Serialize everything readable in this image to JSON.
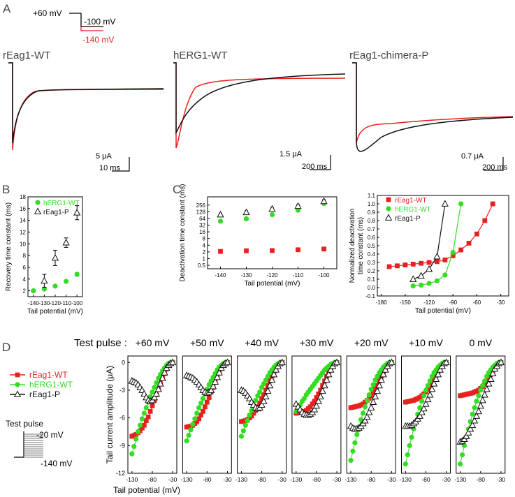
{
  "panel_letters": {
    "A": "A",
    "B": "B",
    "C": "C",
    "D": "D"
  },
  "protocol_A": {
    "hold": "+60 mV",
    "step1": "-100 mV",
    "step2": "-140 mV"
  },
  "traces": {
    "rEag1": {
      "title": "rEag1-WT",
      "scale_y": "5  μA",
      "scale_x": "10 ms"
    },
    "hERG1": {
      "title": "hERG1-WT",
      "scale_y": "1.5  μA",
      "scale_x": "200 ms"
    },
    "chimera": {
      "title": "rEag1-chimera-P",
      "scale_y": "0.7  μA",
      "scale_x": "200 ms"
    }
  },
  "colors": {
    "red": "#e8201f",
    "green": "#33dd22",
    "black": "#111111"
  },
  "panel_D": {
    "test_pulse_heading": "Test pulse :",
    "protocol_title": "Test pulse",
    "protocol_top": "-20 mV",
    "protocol_bottom": "-140 mV"
  },
  "chart_data": [
    {
      "id": "B",
      "type": "scatter",
      "xlabel": "Tail potential (mV)",
      "ylabel": "Recovery time constant (ms)",
      "xticks": [
        "-140",
        "-130",
        "-120",
        "-110",
        "-100"
      ],
      "yticks": [
        "2",
        "4",
        "6",
        "8",
        "10",
        "12",
        "14",
        "16",
        "18"
      ],
      "xlim": [
        -145,
        -95
      ],
      "ylim": [
        1,
        18
      ],
      "legend": [
        "hERG1-WT",
        "rEag1-P"
      ],
      "series": [
        {
          "name": "hERG1-WT",
          "x": [
            -140,
            -130,
            -120,
            -110,
            -100
          ],
          "y": [
            2.0,
            2.3,
            2.8,
            3.6,
            4.8
          ],
          "err": [
            0,
            0,
            0,
            0,
            0.3
          ]
        },
        {
          "name": "rEag1-P",
          "x": [
            -130,
            -120,
            -110,
            -100
          ],
          "y": [
            3.7,
            7.6,
            10.2,
            15.3
          ],
          "err": [
            1.1,
            1.3,
            0.8,
            1.2
          ]
        }
      ]
    },
    {
      "id": "C",
      "type": "scatter",
      "scale": "log2",
      "xlabel": "Tail potential (mV)",
      "ylabel": "Deactivation time constant (ms)",
      "xticks": [
        "-140",
        "-130",
        "-120",
        "-110",
        "-100"
      ],
      "yticks": [
        "0.5",
        "1",
        "2",
        "4",
        "8",
        "16",
        "32",
        "64",
        "128",
        "256"
      ],
      "xlim": [
        -145,
        -95
      ],
      "ylim": [
        0.35,
        600
      ],
      "series": [
        {
          "name": "rEag1-WT",
          "x": [
            -140,
            -130,
            -120,
            -110,
            -100
          ],
          "y": [
            2.1,
            2.25,
            2.3,
            2.5,
            2.7
          ]
        },
        {
          "name": "hERG1-WT",
          "x": [
            -140,
            -130,
            -120,
            -110,
            -100
          ],
          "y": [
            48,
            62,
            95,
            150,
            300
          ]
        },
        {
          "name": "rEag1-P",
          "x": [
            -140,
            -130,
            -120,
            -110,
            -100
          ],
          "y": [
            95,
            120,
            170,
            230,
            380
          ]
        }
      ]
    },
    {
      "id": "C-right",
      "type": "line",
      "xlabel": "Tail potential (mV)",
      "ylabel": "Normalized deactivation time constant (ms)",
      "ylabel_lines": [
        "Normalized deactivation",
        "time constant (ms)"
      ],
      "xticks": [
        "-180",
        "-150",
        "-120",
        "-90",
        "-60",
        "-30"
      ],
      "yticks": [
        "-0.1",
        "0.0",
        "0.1",
        "0.2",
        "0.3",
        "0.4",
        "0.5",
        "0.6",
        "0.7",
        "0.8",
        "0.9",
        "1.0",
        "1.1"
      ],
      "xlim": [
        -185,
        -20
      ],
      "ylim": [
        -0.1,
        1.1
      ],
      "legend": [
        "rEag1-WT",
        "hERG1-WT",
        "rEag1-P"
      ],
      "series": [
        {
          "name": "rEag1-WT",
          "x": [
            -170,
            -160,
            -150,
            -140,
            -130,
            -120,
            -110,
            -100,
            -90,
            -80,
            -70,
            -60,
            -50,
            -40
          ],
          "y": [
            0.25,
            0.26,
            0.27,
            0.28,
            0.29,
            0.3,
            0.31,
            0.33,
            0.38,
            0.45,
            0.53,
            0.64,
            0.8,
            1.0
          ]
        },
        {
          "name": "hERG1-WT",
          "x": [
            -140,
            -130,
            -120,
            -110,
            -100,
            -90,
            -80
          ],
          "y": [
            0.02,
            0.03,
            0.05,
            0.08,
            0.15,
            0.42,
            1.0
          ]
        },
        {
          "name": "rEag1-P",
          "x": [
            -140,
            -130,
            -120,
            -110,
            -100
          ],
          "y": [
            0.1,
            0.14,
            0.22,
            0.37,
            1.0
          ]
        }
      ]
    },
    {
      "id": "D",
      "type": "line",
      "xlabel": "Tail potential (mV)",
      "ylabel": "Tail current amplitude (μA)",
      "xticks": [
        "-130",
        "-80",
        "-30"
      ],
      "yticks": [
        "0",
        "-3",
        "-6",
        "-9",
        "-12"
      ],
      "xlim": [
        -140,
        -20
      ],
      "ylim": [
        -12,
        0.7
      ],
      "legend": [
        "rEag1-WT",
        "hERG1-WT",
        "rEag1-P"
      ],
      "x": [
        -130,
        -125,
        -120,
        -115,
        -110,
        -105,
        -100,
        -95,
        -90,
        -85,
        -80,
        -75,
        -70,
        -65,
        -60,
        -55,
        -50,
        -45,
        -40,
        -35,
        -30
      ],
      "panels": [
        {
          "label": "+60 mV",
          "series": [
            {
              "name": "rEag1-WT",
              "y": [
                -8,
                -7.9,
                -7.8,
                -7.6,
                -7.4,
                -7.1,
                -6.8,
                -6.3,
                -5.9,
                -5.3,
                -4.7,
                -4.1,
                -3.5,
                -2.9,
                -2.3,
                -1.7,
                -1.2,
                -0.7,
                -0.3,
                -0.1,
                0
              ]
            },
            {
              "name": "hERG1-WT",
              "y": [
                -9.9,
                -9.1,
                -8.3,
                -7.5,
                -6.8,
                -6.1,
                -5.5,
                -4.9,
                -4.3,
                -3.7,
                -3.2,
                -2.7,
                -2.2,
                -1.7,
                -1.3,
                -0.9,
                -0.6,
                -0.3,
                -0.1,
                0,
                0
              ]
            },
            {
              "name": "rEag1-P",
              "y": [
                -2,
                -2.1,
                -2.2,
                -2.4,
                -2.7,
                -3.0,
                -3.4,
                -3.8,
                -4.1,
                -4.2,
                -4.1,
                -3.8,
                -3.4,
                -2.9,
                -2.3,
                -1.7,
                -1.1,
                -0.6,
                -0.3,
                -0.1,
                0
              ]
            }
          ]
        },
        {
          "label": "+50 mV",
          "series": [
            {
              "name": "rEag1-WT",
              "y": [
                -7.0,
                -6.95,
                -6.9,
                -6.8,
                -6.6,
                -6.4,
                -6.1,
                -5.7,
                -5.3,
                -4.8,
                -4.3,
                -3.8,
                -3.2,
                -2.7,
                -2.1,
                -1.6,
                -1.1,
                -0.6,
                -0.3,
                -0.1,
                0
              ]
            },
            {
              "name": "hERG1-WT",
              "y": [
                -8.5,
                -7.9,
                -7.3,
                -6.7,
                -6.1,
                -5.5,
                -4.9,
                -4.4,
                -3.9,
                -3.4,
                -2.9,
                -2.4,
                -2.0,
                -1.6,
                -1.2,
                -0.8,
                -0.5,
                -0.3,
                -0.1,
                0,
                0
              ]
            },
            {
              "name": "rEag1-P",
              "y": [
                -1.4,
                -1.5,
                -1.6,
                -1.7,
                -1.9,
                -2.1,
                -2.4,
                -2.7,
                -3.0,
                -3.2,
                -3.3,
                -3.2,
                -3.0,
                -2.6,
                -2.1,
                -1.6,
                -1.1,
                -0.6,
                -0.3,
                -0.1,
                0
              ]
            }
          ]
        },
        {
          "label": "+40 mV",
          "series": [
            {
              "name": "rEag1-WT",
              "y": [
                -6.4,
                -6.35,
                -6.3,
                -6.2,
                -6.0,
                -5.8,
                -5.5,
                -5.2,
                -4.8,
                -4.4,
                -3.9,
                -3.5,
                -3.0,
                -2.5,
                -2.0,
                -1.5,
                -1.0,
                -0.6,
                -0.3,
                -0.1,
                0
              ]
            },
            {
              "name": "hERG1-WT",
              "y": [
                -8.0,
                -7.4,
                -6.8,
                -6.3,
                -5.7,
                -5.2,
                -4.6,
                -4.1,
                -3.6,
                -3.2,
                -2.7,
                -2.3,
                -1.9,
                -1.5,
                -1.1,
                -0.8,
                -0.5,
                -0.3,
                -0.1,
                0,
                0
              ]
            },
            {
              "name": "rEag1-P",
              "y": [
                -3.0,
                -3.1,
                -3.3,
                -3.6,
                -3.9,
                -4.3,
                -4.6,
                -4.9,
                -5.0,
                -4.9,
                -4.6,
                -4.2,
                -3.7,
                -3.1,
                -2.5,
                -1.9,
                -1.3,
                -0.8,
                -0.4,
                -0.1,
                0
              ]
            }
          ]
        },
        {
          "label": "+30 mV",
          "series": [
            {
              "name": "rEag1-WT",
              "y": [
                -5.5,
                -5.45,
                -5.4,
                -5.35,
                -5.3,
                -5.2,
                -5.0,
                -4.8,
                -4.5,
                -4.2,
                -3.8,
                -3.4,
                -3.0,
                -2.5,
                -2.0,
                -1.5,
                -1.0,
                -0.6,
                -0.3,
                -0.1,
                0
              ]
            },
            {
              "name": "hERG1-WT",
              "y": [
                -5.3,
                -4.9,
                -4.6,
                -4.2,
                -3.9,
                -3.5,
                -3.2,
                -2.9,
                -2.6,
                -2.3,
                -2.0,
                -1.7,
                -1.4,
                -1.1,
                -0.8,
                -0.6,
                -0.4,
                -0.2,
                -0.1,
                0,
                0
              ]
            },
            {
              "name": "rEag1-P",
              "y": [
                -4.5,
                -4.8,
                -5.1,
                -5.4,
                -5.6,
                -5.7,
                -5.7,
                -5.6,
                -5.4,
                -5.1,
                -4.7,
                -4.2,
                -3.7,
                -3.1,
                -2.5,
                -1.9,
                -1.3,
                -0.8,
                -0.4,
                -0.1,
                0
              ]
            }
          ]
        },
        {
          "label": "+20 mV",
          "series": [
            {
              "name": "rEag1-WT",
              "y": [
                -4.9,
                -4.85,
                -4.8,
                -4.75,
                -4.7,
                -4.6,
                -4.5,
                -4.3,
                -4.1,
                -3.9,
                -3.6,
                -3.3,
                -2.9,
                -2.5,
                -2.0,
                -1.5,
                -1.0,
                -0.6,
                -0.3,
                -0.1,
                0
              ]
            },
            {
              "name": "hERG1-WT",
              "y": [
                -10.6,
                -9.6,
                -8.7,
                -7.8,
                -7.0,
                -6.2,
                -5.5,
                -4.8,
                -4.1,
                -3.5,
                -2.9,
                -2.4,
                -1.9,
                -1.5,
                -1.1,
                -0.8,
                -0.5,
                -0.3,
                -0.1,
                0,
                0
              ]
            },
            {
              "name": "rEag1-P",
              "y": [
                -6.9,
                -7.1,
                -7.2,
                -7.2,
                -7.1,
                -6.9,
                -6.6,
                -6.3,
                -5.9,
                -5.4,
                -4.9,
                -4.3,
                -3.7,
                -3.1,
                -2.5,
                -1.9,
                -1.3,
                -0.8,
                -0.4,
                -0.1,
                0
              ]
            }
          ]
        },
        {
          "label": "+10 mV",
          "series": [
            {
              "name": "rEag1-WT",
              "y": [
                -4.3,
                -4.25,
                -4.2,
                -4.15,
                -4.1,
                -4.0,
                -3.9,
                -3.8,
                -3.6,
                -3.4,
                -3.2,
                -2.9,
                -2.6,
                -2.2,
                -1.8,
                -1.4,
                -1.0,
                -0.6,
                -0.3,
                -0.1,
                0
              ]
            },
            {
              "name": "hERG1-WT",
              "y": [
                -11.0,
                -10.0,
                -9.0,
                -8.1,
                -7.2,
                -6.4,
                -5.6,
                -4.9,
                -4.2,
                -3.6,
                -3.0,
                -2.5,
                -2.0,
                -1.5,
                -1.1,
                -0.8,
                -0.5,
                -0.3,
                -0.1,
                0,
                0
              ]
            },
            {
              "name": "rEag1-P",
              "y": [
                -6.9,
                -6.9,
                -6.9,
                -6.8,
                -6.6,
                -6.4,
                -6.1,
                -5.8,
                -5.4,
                -5.0,
                -4.5,
                -4.0,
                -3.5,
                -2.9,
                -2.3,
                -1.8,
                -1.3,
                -0.8,
                -0.4,
                -0.1,
                0
              ]
            }
          ]
        },
        {
          "label": "0 mV",
          "series": [
            {
              "name": "rEag1-WT",
              "y": [
                -3.6,
                -3.55,
                -3.5,
                -3.45,
                -3.4,
                -3.35,
                -3.3,
                -3.2,
                -3.1,
                -3.0,
                -2.8,
                -2.6,
                -2.3,
                -2.0,
                -1.7,
                -1.3,
                -0.9,
                -0.6,
                -0.3,
                -0.1,
                0
              ]
            },
            {
              "name": "hERG1-WT",
              "y": [
                -11.0,
                -10.0,
                -9.0,
                -8.1,
                -7.2,
                -6.4,
                -5.6,
                -4.9,
                -4.2,
                -3.6,
                -3.0,
                -2.5,
                -2.0,
                -1.5,
                -1.1,
                -0.8,
                -0.5,
                -0.3,
                -0.1,
                0,
                0
              ]
            },
            {
              "name": "rEag1-P",
              "y": [
                -8.6,
                -8.5,
                -8.3,
                -8.0,
                -7.6,
                -7.2,
                -6.8,
                -6.3,
                -5.8,
                -5.3,
                -4.7,
                -4.1,
                -3.5,
                -2.9,
                -2.3,
                -1.8,
                -1.2,
                -0.7,
                -0.4,
                -0.1,
                0
              ]
            }
          ]
        }
      ]
    }
  ]
}
